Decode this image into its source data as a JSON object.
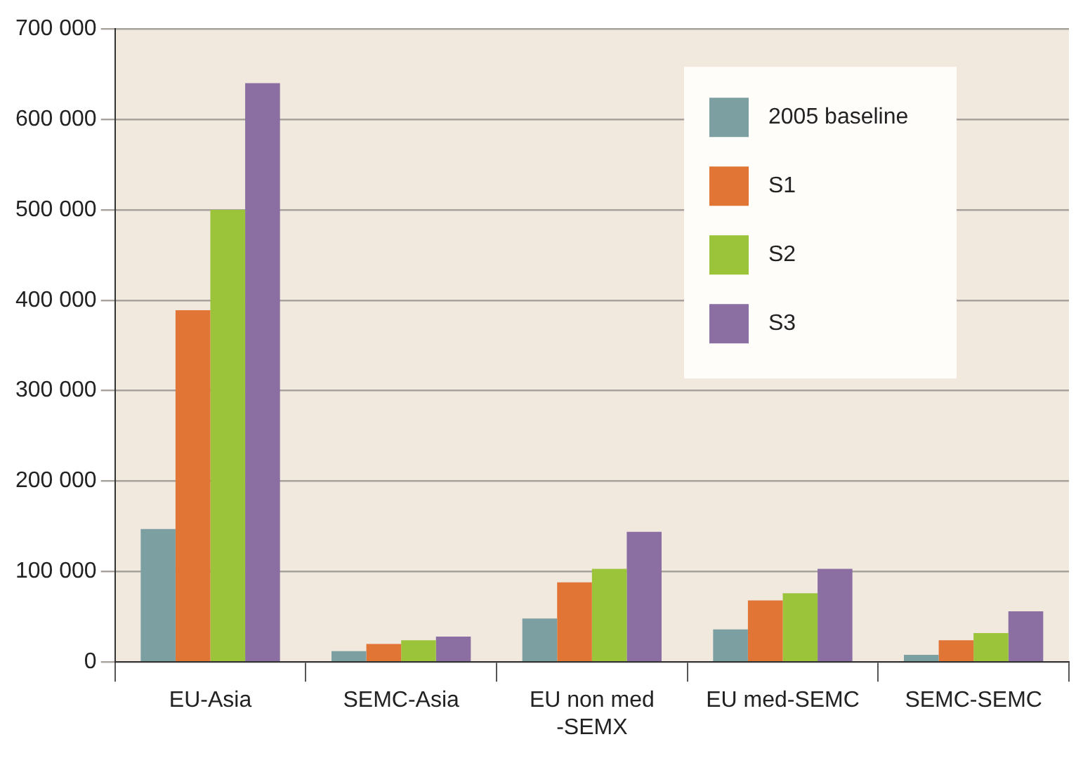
{
  "chart_data": {
    "type": "bar",
    "categories": [
      "EU-Asia",
      "SEMC-Asia",
      "EU non med\n-SEMX",
      "EU med-SEMC",
      "SEMC-SEMC"
    ],
    "series": [
      {
        "name": "2005 baseline",
        "color": "#7c9fa2",
        "values": [
          147000,
          12000,
          48000,
          36000,
          8000
        ]
      },
      {
        "name": "S1",
        "color": "#e07536",
        "values": [
          389000,
          20000,
          88000,
          68000,
          24000
        ]
      },
      {
        "name": "S2",
        "color": "#9bc43b",
        "values": [
          500000,
          24000,
          103000,
          76000,
          32000
        ]
      },
      {
        "name": "S3",
        "color": "#8b6ea2",
        "values": [
          640000,
          28000,
          144000,
          103000,
          56000
        ]
      }
    ],
    "ylim": [
      0,
      700000
    ],
    "yticks": [
      {
        "value": 0,
        "label": "0"
      },
      {
        "value": 100000,
        "label": "100 000"
      },
      {
        "value": 200000,
        "label": "200 000"
      },
      {
        "value": 300000,
        "label": "300 000"
      },
      {
        "value": 400000,
        "label": "400 000"
      },
      {
        "value": 500000,
        "label": "500 000"
      },
      {
        "value": 600000,
        "label": "600 000"
      },
      {
        "value": 700000,
        "label": "700 000"
      }
    ],
    "grid": "y",
    "legend": "top right"
  }
}
